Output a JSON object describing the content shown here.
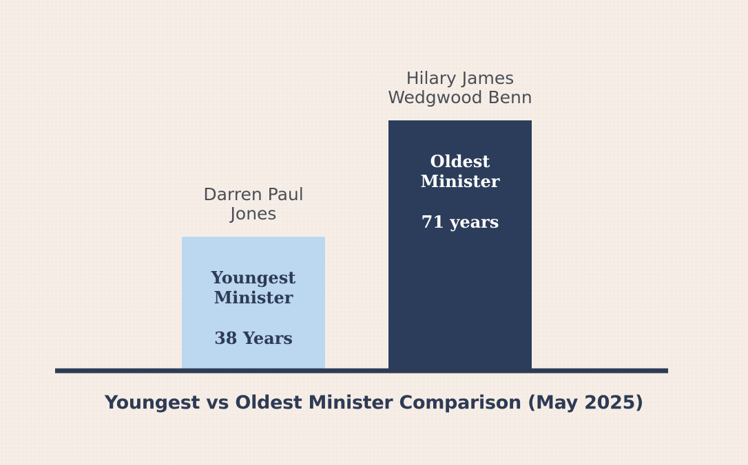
{
  "chart_data": {
    "type": "bar",
    "title": "Youngest vs Oldest Minister Comparison (May 2025)",
    "categories": [
      "Darren Paul Jones",
      "Hilary James Wedgwood Benn"
    ],
    "category_lines": [
      [
        "Darren Paul",
        "Jones"
      ],
      [
        "Hilary James",
        "Wedgwood Benn"
      ]
    ],
    "bar_labels": [
      [
        "Youngest",
        "Minister"
      ],
      [
        "Oldest",
        "Minister"
      ]
    ],
    "value_labels": [
      "38 Years",
      "71 years"
    ],
    "values": [
      38,
      71
    ],
    "bar_colors": [
      "#bcd7f0",
      "#2b3d5a"
    ],
    "bar_text_colors": [
      "#2e3b55",
      "#ffffff"
    ],
    "baseline_color": "#2e3b55",
    "xlabel": "",
    "ylabel": "",
    "grid": false
  }
}
